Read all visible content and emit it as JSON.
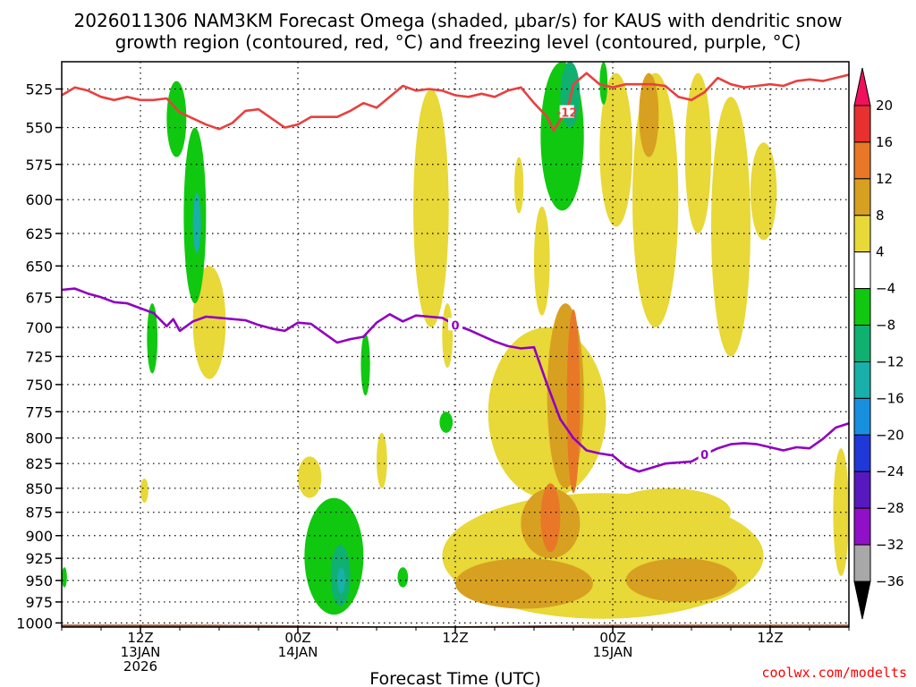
{
  "chart_data": {
    "type": "heatmap",
    "title_line1": "2026011306 NAM3KM Forecast Omega (shaded, μbar/s) for KAUS with dendritic snow",
    "title_line2": "growth region (contoured, red, °C) and freezing level (contoured, purple, °C)",
    "xlabel": "Forecast Time (UTC)",
    "ylabel": "",
    "credit": "coolwx.com/modelts",
    "x_unit": "forecast hour from 2026011306",
    "xlim": [
      0,
      60
    ],
    "ylim_hpa": [
      1005,
      508
    ],
    "y_ticks": [
      525,
      550,
      575,
      600,
      625,
      650,
      675,
      700,
      725,
      750,
      775,
      800,
      825,
      850,
      875,
      900,
      925,
      950,
      975,
      1000
    ],
    "x_ticks": [
      {
        "hour": 6,
        "label1": "12Z",
        "label2": "13JAN",
        "label3": "2026"
      },
      {
        "hour": 18,
        "label1": "00Z",
        "label2": "14JAN",
        "label3": ""
      },
      {
        "hour": 30,
        "label1": "12Z",
        "label2": "",
        "label3": ""
      },
      {
        "hour": 42,
        "label1": "00Z",
        "label2": "15JAN",
        "label3": ""
      },
      {
        "hour": 54,
        "label1": "12Z",
        "label2": "",
        "label3": ""
      }
    ],
    "colorbar": {
      "labels": [
        "20",
        "16",
        "12",
        "8",
        "4",
        "−4",
        "−8",
        "−12",
        "−16",
        "−20",
        "−24",
        "−28",
        "−32",
        "−36"
      ],
      "colors": [
        "#f0105c",
        "#e83030",
        "#e87828",
        "#d8a020",
        "#e8d838",
        "#ffffff",
        "#10c810",
        "#10b070",
        "#18b0a8",
        "#1890e0",
        "#2038d8",
        "#5818c0",
        "#9010c8",
        "#a8a8a8",
        "#000000"
      ]
    },
    "freezing_level": {
      "label": "0",
      "color": "#9000c0",
      "hours": [
        0,
        1,
        2,
        3,
        4,
        5,
        6,
        7,
        8,
        8.5,
        9,
        10,
        11,
        12,
        13,
        14,
        15,
        16,
        17,
        18,
        19,
        20,
        21,
        22,
        23,
        24,
        25,
        26,
        27,
        28,
        29,
        30,
        31,
        32,
        33,
        34,
        35,
        36,
        37,
        38,
        39,
        40,
        41,
        42,
        43,
        44,
        45,
        46,
        47,
        48,
        49,
        50,
        51,
        52,
        53,
        54,
        55,
        56,
        57,
        58,
        59,
        60
      ],
      "hpa": [
        669,
        668,
        672,
        675,
        679,
        680,
        684,
        688,
        699,
        693,
        703,
        695,
        691,
        692,
        693,
        694,
        698,
        701,
        703,
        696,
        697,
        705,
        713,
        710,
        708,
        696,
        689,
        695,
        690,
        691,
        692,
        698,
        702,
        707,
        712,
        716,
        718,
        717,
        750,
        782,
        800,
        812,
        815,
        817,
        828,
        833,
        829,
        825,
        824,
        823,
        816,
        810,
        806,
        805,
        806,
        809,
        812,
        809,
        810,
        801,
        790,
        786
      ]
    },
    "dgz_level": {
      "label": "-12",
      "color": "#e84040",
      "hours": [
        0,
        1,
        2,
        3,
        4,
        5,
        6,
        7,
        8,
        9,
        10,
        11,
        12,
        13,
        14,
        15,
        16,
        17,
        18,
        19,
        20,
        21,
        22,
        23,
        24,
        25,
        26,
        27,
        28,
        29,
        30,
        31,
        32,
        33,
        34,
        35,
        36,
        37,
        37.5,
        38,
        38.5,
        39,
        40,
        41,
        42,
        43,
        44,
        45,
        46,
        47,
        48,
        49,
        50,
        51,
        52,
        53,
        54,
        55,
        56,
        57,
        58,
        59,
        60
      ],
      "hpa": [
        529,
        524,
        526,
        530,
        532,
        530,
        532,
        532,
        531,
        540,
        544,
        548,
        551,
        547,
        539,
        538,
        544,
        550,
        548,
        543,
        543,
        543,
        539,
        534,
        537,
        530,
        523,
        526,
        525,
        526,
        529,
        530,
        528,
        530,
        526,
        524,
        534,
        543,
        552,
        545,
        540,
        522,
        515,
        522,
        524,
        522,
        522,
        522,
        523,
        530,
        532,
        527,
        518,
        522,
        524,
        523,
        522,
        523,
        520,
        519,
        520,
        518,
        516
      ]
    },
    "omega_regions": [
      {
        "c": "#e8d838",
        "h0": 6.0,
        "h1": 6.6,
        "p0": 840,
        "p1": 865
      },
      {
        "c": "#e8d838",
        "h0": 10.0,
        "h1": 12.5,
        "p0": 650,
        "p1": 745
      },
      {
        "c": "#e8d838",
        "h0": 18.0,
        "h1": 19.8,
        "p0": 818,
        "p1": 860
      },
      {
        "c": "#e8d838",
        "h0": 24.0,
        "h1": 24.8,
        "p0": 795,
        "p1": 850
      },
      {
        "c": "#e8d838",
        "h0": 26.8,
        "h1": 29.5,
        "p0": 525,
        "p1": 700
      },
      {
        "c": "#e8d838",
        "h0": 29.0,
        "h1": 29.8,
        "p0": 680,
        "p1": 735
      },
      {
        "c": "#e8d838",
        "h0": 34.5,
        "h1": 35.2,
        "p0": 570,
        "p1": 610
      },
      {
        "c": "#e8d838",
        "h0": 36.0,
        "h1": 37.2,
        "p0": 605,
        "p1": 690
      },
      {
        "c": "#e8d838",
        "h0": 29.0,
        "h1": 53.5,
        "p0": 855,
        "p1": 995
      },
      {
        "c": "#e8d838",
        "h0": 32.5,
        "h1": 41.5,
        "p0": 700,
        "p1": 860
      },
      {
        "c": "#e8d838",
        "h0": 41.5,
        "h1": 51.0,
        "p0": 850,
        "p1": 900
      },
      {
        "c": "#e8d838",
        "h0": 41.0,
        "h1": 43.5,
        "p0": 515,
        "p1": 620
      },
      {
        "c": "#e8d838",
        "h0": 43.5,
        "h1": 47.0,
        "p0": 515,
        "p1": 700
      },
      {
        "c": "#e8d838",
        "h0": 47.5,
        "h1": 49.5,
        "p0": 515,
        "p1": 625
      },
      {
        "c": "#e8d838",
        "h0": 49.5,
        "h1": 52.5,
        "p0": 530,
        "p1": 725
      },
      {
        "c": "#e8d838",
        "h0": 52.5,
        "h1": 54.5,
        "p0": 560,
        "p1": 630
      },
      {
        "c": "#e8d838",
        "h0": 58.8,
        "h1": 60.0,
        "p0": 810,
        "p1": 945
      },
      {
        "c": "#d8a020",
        "h0": 30.0,
        "h1": 40.5,
        "p0": 925,
        "p1": 983
      },
      {
        "c": "#d8a020",
        "h0": 35.0,
        "h1": 39.5,
        "p0": 850,
        "p1": 925
      },
      {
        "c": "#d8a020",
        "h0": 37.0,
        "h1": 39.8,
        "p0": 680,
        "p1": 850
      },
      {
        "c": "#d8a020",
        "h0": 43.0,
        "h1": 51.5,
        "p0": 925,
        "p1": 975
      },
      {
        "c": "#d8a020",
        "h0": 44.0,
        "h1": 45.5,
        "p0": 515,
        "p1": 570
      },
      {
        "c": "#e87828",
        "h0": 36.5,
        "h1": 38.0,
        "p0": 845,
        "p1": 918
      },
      {
        "c": "#e87828",
        "h0": 38.5,
        "h1": 39.5,
        "p0": 685,
        "p1": 855
      },
      {
        "c": "#10c810",
        "h0": 8.0,
        "h1": 9.5,
        "p0": 520,
        "p1": 570
      },
      {
        "c": "#10c810",
        "h0": 9.3,
        "h1": 11.0,
        "p0": 550,
        "p1": 680
      },
      {
        "c": "#10c810",
        "h0": 6.5,
        "h1": 7.3,
        "p0": 680,
        "p1": 740
      },
      {
        "c": "#10c810",
        "h0": 22.8,
        "h1": 23.5,
        "p0": 705,
        "p1": 760
      },
      {
        "c": "#10c810",
        "h0": 28.8,
        "h1": 29.8,
        "p0": 775,
        "p1": 795
      },
      {
        "c": "#10c810",
        "h0": 18.5,
        "h1": 23.0,
        "p0": 860,
        "p1": 990
      },
      {
        "c": "#10c810",
        "h0": 25.6,
        "h1": 26.4,
        "p0": 935,
        "p1": 958
      },
      {
        "c": "#10c810",
        "h0": 36.5,
        "h1": 39.8,
        "p0": 508,
        "p1": 608
      },
      {
        "c": "#10c810",
        "h0": 41.0,
        "h1": 41.6,
        "p0": 508,
        "p1": 535
      },
      {
        "c": "#10c810",
        "h0": 0.0,
        "h1": 0.4,
        "p0": 935,
        "p1": 958
      },
      {
        "c": "#10b070",
        "h0": 38.0,
        "h1": 39.5,
        "p0": 508,
        "p1": 550
      },
      {
        "c": "#10b070",
        "h0": 20.5,
        "h1": 22.0,
        "p0": 910,
        "p1": 980
      },
      {
        "c": "#18b0a8",
        "h0": 10.0,
        "h1": 10.6,
        "p0": 595,
        "p1": 640
      },
      {
        "c": "#18b0a8",
        "h0": 21.0,
        "h1": 21.6,
        "p0": 935,
        "p1": 965
      }
    ]
  }
}
